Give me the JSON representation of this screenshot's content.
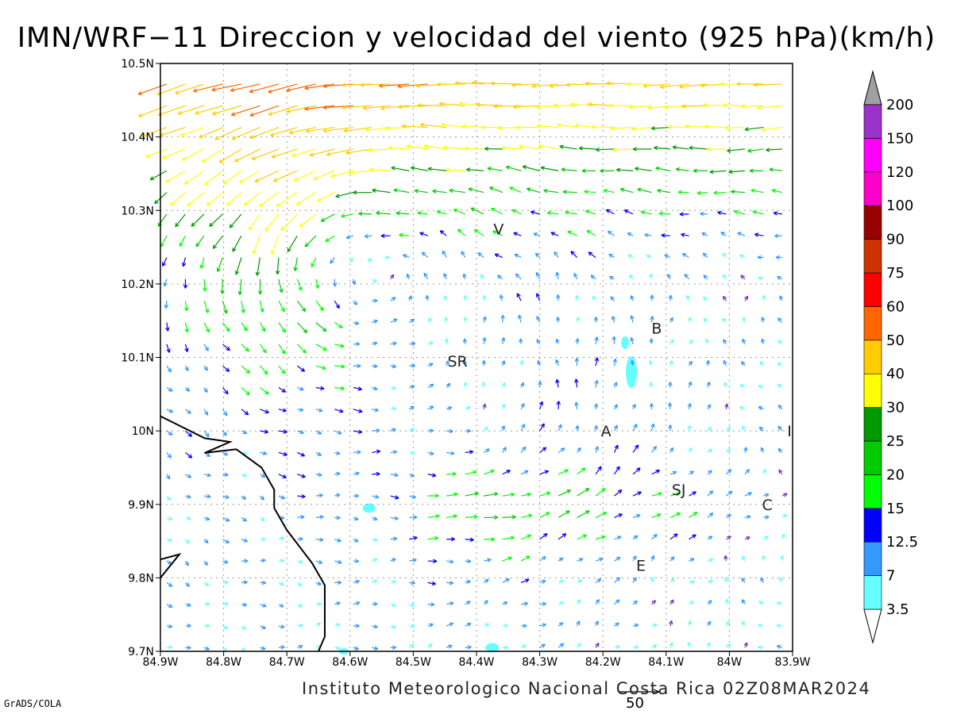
{
  "title": "IMN/WRF−11 Direccion y velocidad del viento (925 hPa)(km/h)",
  "footer": "Instituto Meteorologico Nacional Costa Rica 02Z08MAR2024",
  "credit": "GrADS/COLA",
  "reference_vector": {
    "label": "50",
    "speed_kmh": 50
  },
  "axes": {
    "lon_ticks": [
      "84.9W",
      "84.8W",
      "84.7W",
      "84.6W",
      "84.5W",
      "84.4W",
      "84.3W",
      "84.2W",
      "84.1W",
      "84W",
      "83.9W"
    ],
    "lat_ticks": [
      "10.5N",
      "10.4N",
      "10.3N",
      "10.2N",
      "10.1N",
      "10N",
      "9.9N",
      "9.8N",
      "9.7N"
    ],
    "lon_range": [
      -84.9,
      -83.9
    ],
    "lat_range": [
      9.7,
      10.5
    ],
    "grid": "dotted"
  },
  "place_labels": [
    {
      "text": "V",
      "lon": -84.365,
      "lat": 10.275
    },
    {
      "text": "B",
      "lon": -84.115,
      "lat": 10.14
    },
    {
      "text": "SR",
      "lon": -84.43,
      "lat": 10.095
    },
    {
      "text": "A",
      "lon": -84.195,
      "lat": 10.0
    },
    {
      "text": "I",
      "lon": -83.905,
      "lat": 10.0
    },
    {
      "text": "SJ",
      "lon": -84.08,
      "lat": 9.92
    },
    {
      "text": "C",
      "lon": -83.94,
      "lat": 9.9
    },
    {
      "text": "E",
      "lon": -84.14,
      "lat": 9.817
    }
  ],
  "colorbar": {
    "levels": [
      "3.5",
      "7",
      "12.5",
      "15",
      "20",
      "25",
      "30",
      "40",
      "50",
      "60",
      "75",
      "90",
      "100",
      "120",
      "150",
      "200"
    ],
    "colors": [
      "#66ffff",
      "#3399ff",
      "#0000ff",
      "#00ff00",
      "#00cc00",
      "#009900",
      "#ffff00",
      "#ffcc00",
      "#ff6600",
      "#ff0000",
      "#cc3300",
      "#990000",
      "#ff00cc",
      "#ff00ff",
      "#9933cc",
      "#f2f2f2",
      "#a0a0a0"
    ]
  },
  "colors": {
    "grid": "#999999",
    "coast": "#000000",
    "weak_wind": "#7b2fbe"
  }
}
